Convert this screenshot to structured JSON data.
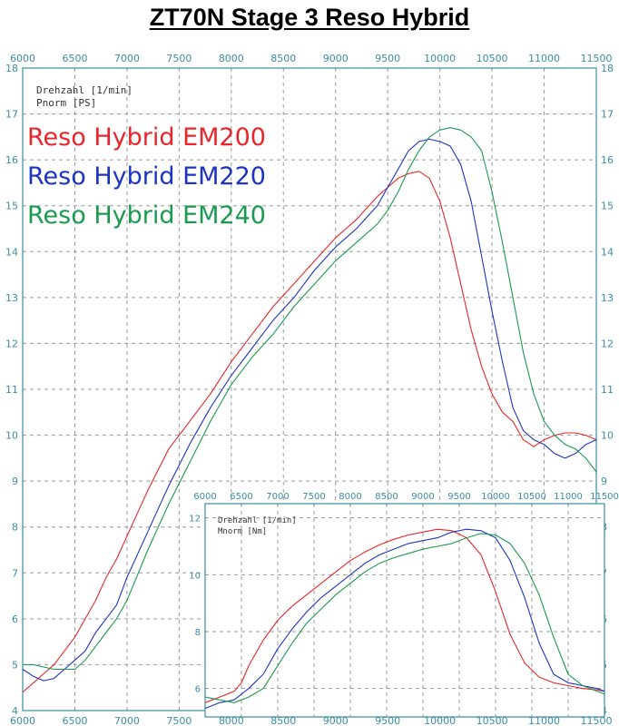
{
  "title": "ZT70N  Stage 3  Reso Hybrid",
  "colors": {
    "grid": "#9a9a9a",
    "tick": "#3b8ea0",
    "frame": "#3b8ea0",
    "EM200": "#e8262a",
    "EM220": "#1c34c4",
    "EM240": "#1a9a4e"
  },
  "chart_data": [
    {
      "type": "line",
      "title": "",
      "xlabel": "Drehzahl [1/min]",
      "ylabel": "Pnorm [PS]",
      "xlim": [
        6000,
        11500
      ],
      "ylim": [
        4,
        18
      ],
      "x_ticks": [
        6000,
        6500,
        7000,
        7500,
        8000,
        8500,
        9000,
        9500,
        10000,
        10500,
        11000,
        11500
      ],
      "y_ticks": [
        4,
        5,
        6,
        7,
        8,
        9,
        10,
        11,
        12,
        13,
        14,
        15,
        16,
        17,
        18
      ],
      "legend_position": "top-left",
      "series": [
        {
          "name": "Reso Hybrid EM200",
          "x": [
            6000,
            6100,
            6200,
            6300,
            6400,
            6500,
            6600,
            6700,
            6800,
            6900,
            7000,
            7200,
            7400,
            7600,
            7800,
            8000,
            8200,
            8400,
            8600,
            8800,
            9000,
            9200,
            9400,
            9500,
            9600,
            9700,
            9800,
            9900,
            10000,
            10100,
            10200,
            10300,
            10400,
            10500,
            10600,
            10700,
            10800,
            10900,
            11000,
            11100,
            11200,
            11300,
            11400,
            11500
          ],
          "y": [
            4.4,
            4.6,
            4.8,
            5.0,
            5.3,
            5.6,
            6.0,
            6.4,
            6.9,
            7.3,
            7.8,
            8.8,
            9.7,
            10.3,
            10.9,
            11.6,
            12.2,
            12.8,
            13.3,
            13.8,
            14.3,
            14.7,
            15.2,
            15.4,
            15.6,
            15.7,
            15.75,
            15.6,
            15.1,
            14.3,
            13.3,
            12.3,
            11.5,
            10.9,
            10.5,
            10.3,
            9.9,
            9.75,
            9.9,
            10.0,
            10.05,
            10.05,
            10.0,
            9.9
          ]
        },
        {
          "name": "Reso Hybrid EM220",
          "x": [
            6000,
            6100,
            6200,
            6300,
            6400,
            6500,
            6600,
            6700,
            6800,
            6900,
            7000,
            7200,
            7400,
            7600,
            7800,
            8000,
            8200,
            8400,
            8600,
            8800,
            9000,
            9200,
            9400,
            9500,
            9600,
            9700,
            9800,
            9900,
            10000,
            10100,
            10200,
            10300,
            10400,
            10500,
            10600,
            10700,
            10800,
            10900,
            11000,
            11100,
            11200,
            11300,
            11400,
            11500
          ],
          "y": [
            4.9,
            4.75,
            4.65,
            4.7,
            4.9,
            5.1,
            5.3,
            5.7,
            6.0,
            6.3,
            6.9,
            7.9,
            8.9,
            9.8,
            10.6,
            11.3,
            11.9,
            12.5,
            13.0,
            13.6,
            14.1,
            14.5,
            15.0,
            15.4,
            15.8,
            16.2,
            16.4,
            16.45,
            16.4,
            16.3,
            15.9,
            15.1,
            13.9,
            12.7,
            11.6,
            10.6,
            10.1,
            9.9,
            9.8,
            9.6,
            9.5,
            9.6,
            9.8,
            9.9
          ]
        },
        {
          "name": "Reso Hybrid EM240",
          "x": [
            6000,
            6100,
            6200,
            6300,
            6400,
            6500,
            6600,
            6700,
            6800,
            6900,
            7000,
            7200,
            7400,
            7600,
            7800,
            8000,
            8200,
            8400,
            8600,
            8800,
            9000,
            9200,
            9400,
            9500,
            9600,
            9700,
            9800,
            9900,
            10000,
            10100,
            10200,
            10300,
            10400,
            10500,
            10600,
            10700,
            10800,
            10900,
            11000,
            11100,
            11200,
            11300,
            11400,
            11500
          ],
          "y": [
            5.0,
            5.0,
            4.95,
            4.9,
            4.9,
            4.9,
            5.1,
            5.4,
            5.7,
            6.0,
            6.4,
            7.5,
            8.5,
            9.4,
            10.3,
            11.1,
            11.7,
            12.2,
            12.8,
            13.3,
            13.8,
            14.2,
            14.6,
            14.9,
            15.3,
            15.8,
            16.2,
            16.5,
            16.65,
            16.7,
            16.65,
            16.5,
            16.2,
            15.3,
            14.2,
            13.0,
            11.8,
            10.9,
            10.3,
            10.0,
            9.8,
            9.7,
            9.5,
            9.2
          ]
        }
      ]
    },
    {
      "type": "line",
      "title": "",
      "xlabel": "Drehzahl [1/min]",
      "ylabel": "Mnorm [Nm]",
      "xlim": [
        6000,
        11500
      ],
      "ylim": [
        5,
        12.5
      ],
      "x_ticks": [
        6000,
        6500,
        7000,
        7500,
        8000,
        8500,
        9000,
        9500,
        10000,
        10500,
        11000,
        11500
      ],
      "y_ticks": [
        6,
        8,
        10,
        12
      ],
      "series": [
        {
          "name": "EM200",
          "x": [
            6000,
            6200,
            6400,
            6500,
            6600,
            6800,
            7000,
            7200,
            7400,
            7600,
            7800,
            8000,
            8200,
            8400,
            8600,
            8800,
            9000,
            9200,
            9400,
            9600,
            9800,
            10000,
            10200,
            10400,
            10600,
            10800,
            11000,
            11200,
            11400,
            11500
          ],
          "y": [
            5.5,
            5.7,
            5.9,
            6.2,
            6.8,
            7.7,
            8.4,
            8.9,
            9.3,
            9.7,
            10.1,
            10.5,
            10.8,
            11.05,
            11.25,
            11.4,
            11.5,
            11.6,
            11.55,
            11.3,
            10.7,
            9.4,
            7.9,
            6.9,
            6.4,
            6.2,
            6.1,
            6.0,
            5.95,
            5.9
          ]
        },
        {
          "name": "EM220",
          "x": [
            6000,
            6200,
            6400,
            6500,
            6600,
            6800,
            7000,
            7200,
            7400,
            7600,
            7800,
            8000,
            8200,
            8400,
            8600,
            8800,
            9000,
            9200,
            9400,
            9600,
            9800,
            10000,
            10200,
            10400,
            10600,
            10800,
            11000,
            11200,
            11400,
            11500
          ],
          "y": [
            5.3,
            5.5,
            5.6,
            5.8,
            6.0,
            6.5,
            7.4,
            8.1,
            8.7,
            9.2,
            9.6,
            10.0,
            10.4,
            10.7,
            10.9,
            11.1,
            11.2,
            11.3,
            11.5,
            11.6,
            11.55,
            11.3,
            10.5,
            9.2,
            7.6,
            6.5,
            6.2,
            6.1,
            6.0,
            5.9
          ]
        },
        {
          "name": "EM240",
          "x": [
            6000,
            6200,
            6400,
            6500,
            6600,
            6800,
            7000,
            7200,
            7400,
            7600,
            7800,
            8000,
            8200,
            8400,
            8600,
            8800,
            9000,
            9200,
            9400,
            9600,
            9800,
            10000,
            10200,
            10400,
            10600,
            10800,
            11000,
            11200,
            11400,
            11500
          ],
          "y": [
            5.7,
            5.6,
            5.5,
            5.6,
            5.7,
            6.0,
            6.8,
            7.6,
            8.3,
            8.8,
            9.3,
            9.7,
            10.1,
            10.4,
            10.6,
            10.75,
            10.9,
            11.0,
            11.1,
            11.3,
            11.45,
            11.4,
            11.1,
            10.4,
            9.3,
            7.8,
            6.5,
            6.1,
            5.9,
            5.8
          ]
        }
      ]
    }
  ]
}
